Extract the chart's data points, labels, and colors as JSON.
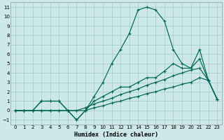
{
  "xlabel": "Humidex (Indice chaleur)",
  "bg_color": "#cce8e8",
  "grid_color": "#aacece",
  "line_color": "#006655",
  "xlim": [
    -0.5,
    23.5
  ],
  "ylim": [
    -1.5,
    11.5
  ],
  "xticks": [
    0,
    1,
    2,
    3,
    4,
    5,
    6,
    7,
    8,
    9,
    10,
    11,
    12,
    13,
    14,
    15,
    16,
    17,
    18,
    19,
    20,
    21,
    22,
    23
  ],
  "yticks": [
    -1,
    0,
    1,
    2,
    3,
    4,
    5,
    6,
    7,
    8,
    9,
    10,
    11
  ],
  "line_main_x": [
    0,
    1,
    2,
    3,
    4,
    5,
    6,
    7,
    8,
    9,
    10,
    11,
    12,
    13,
    14,
    15,
    16,
    17,
    18,
    19,
    20,
    21,
    22,
    23
  ],
  "line_main_y": [
    0,
    0,
    0,
    1,
    1,
    1,
    0,
    -1,
    0,
    1.5,
    3,
    5,
    6.5,
    8.2,
    10.7,
    11,
    10.7,
    9.5,
    6.5,
    5,
    4.5,
    6.5,
    3.2,
    1.2
  ],
  "line2_x": [
    0,
    1,
    2,
    3,
    4,
    5,
    6,
    7,
    8,
    9,
    10,
    11,
    12,
    13,
    14,
    15,
    16,
    17,
    18,
    19,
    20,
    21,
    22,
    23
  ],
  "line2_y": [
    0,
    0,
    0,
    1,
    1,
    1,
    0,
    -1,
    0,
    1,
    1.5,
    2,
    2.5,
    2.5,
    3,
    3.5,
    3.5,
    4.2,
    5,
    4.5,
    4.5,
    5.5,
    3.2,
    1.2
  ],
  "line3_x": [
    0,
    1,
    2,
    3,
    4,
    5,
    6,
    7,
    8,
    9,
    10,
    11,
    12,
    13,
    14,
    15,
    16,
    17,
    18,
    19,
    20,
    21,
    22,
    23
  ],
  "line3_y": [
    0,
    0,
    0,
    0,
    0,
    0,
    0,
    0,
    0.3,
    0.7,
    1,
    1.3,
    1.7,
    2,
    2.3,
    2.7,
    3,
    3.3,
    3.7,
    4,
    4.3,
    4.5,
    3.2,
    1.2
  ],
  "line4_x": [
    0,
    1,
    2,
    3,
    4,
    5,
    6,
    7,
    8,
    9,
    10,
    11,
    12,
    13,
    14,
    15,
    16,
    17,
    18,
    19,
    20,
    21,
    22,
    23
  ],
  "line4_y": [
    0,
    0,
    0,
    0,
    0,
    0,
    0,
    0,
    0,
    0.3,
    0.5,
    0.8,
    1,
    1.3,
    1.5,
    1.8,
    2,
    2.3,
    2.5,
    2.8,
    3,
    3.5,
    3.2,
    1.2
  ]
}
